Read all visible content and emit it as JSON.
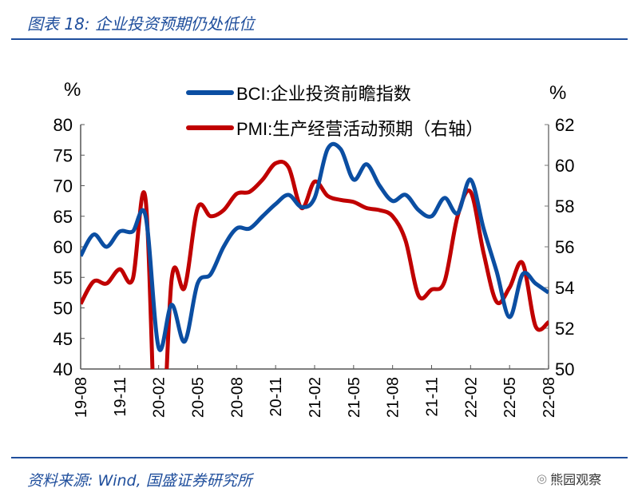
{
  "title": "图表 18:  企业投资预期仍处低位",
  "source": "资料来源:  Wind,  国盛证券研究所",
  "logo_text": "熊园观察",
  "chart_data": {
    "type": "line",
    "left_unit": "%",
    "right_unit": "%",
    "ylim_left": [
      40,
      80
    ],
    "yticks_left": [
      40,
      45,
      50,
      55,
      60,
      65,
      70,
      75,
      80
    ],
    "ylim_right": [
      50,
      62
    ],
    "yticks_right": [
      50,
      52,
      54,
      56,
      58,
      60,
      62
    ],
    "x": [
      "19-08",
      "19-09",
      "19-10",
      "19-11",
      "19-12",
      "20-01",
      "20-02",
      "20-03",
      "20-04",
      "20-05",
      "20-06",
      "20-07",
      "20-08",
      "20-09",
      "20-10",
      "20-11",
      "20-12",
      "21-01",
      "21-02",
      "21-03",
      "21-04",
      "21-05",
      "21-06",
      "21-07",
      "21-08",
      "21-09",
      "21-10",
      "21-11",
      "21-12",
      "22-01",
      "22-02",
      "22-03",
      "22-04",
      "22-05",
      "22-06",
      "22-07",
      "22-08"
    ],
    "xticks": [
      "19-08",
      "19-11",
      "20-02",
      "20-05",
      "20-08",
      "20-11",
      "21-02",
      "21-05",
      "21-08",
      "21-11",
      "22-02",
      "22-05",
      "22-08"
    ],
    "series": [
      {
        "name": "BCI:企业投资前瞻指数",
        "axis": "left",
        "color": "#0b4ea2",
        "values": [
          58.5,
          62,
          60,
          62.5,
          62.5,
          65,
          43.5,
          50.5,
          44.5,
          54,
          55.5,
          60,
          63,
          63,
          65,
          67,
          68.5,
          66.5,
          68,
          76,
          76,
          71,
          73.5,
          70,
          67.5,
          68.5,
          66,
          65,
          68,
          65.5,
          71,
          63,
          56,
          48.5,
          55.5,
          54,
          52.5
        ]
      },
      {
        "name": "PMI:生产经营活动预期（右轴）",
        "axis": "right",
        "color": "#c00000",
        "values": [
          53.2,
          54.3,
          54.2,
          54.9,
          54.4,
          58.3,
          43.6,
          54.4,
          54.0,
          57.9,
          57.5,
          57.8,
          58.6,
          58.7,
          59.3,
          60.1,
          59.9,
          57.9,
          59.2,
          58.5,
          58.3,
          58.2,
          57.9,
          57.8,
          57.5,
          56.3,
          53.6,
          53.9,
          54.3,
          57.5,
          58.7,
          55.7,
          53.3,
          54.0,
          55.2,
          52.1,
          52.3
        ]
      }
    ]
  }
}
